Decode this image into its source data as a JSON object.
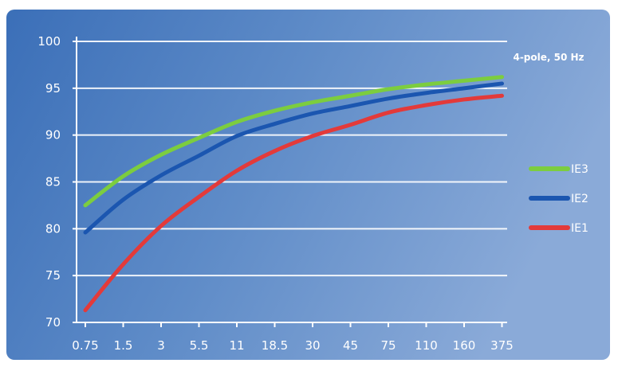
{
  "chart_data": {
    "type": "line",
    "title": "",
    "xlabel": "",
    "ylabel": "",
    "annotation": "4-pole, 50 Hz",
    "categories": [
      "0.75",
      "1.5",
      "3",
      "5.5",
      "11",
      "18.5",
      "30",
      "45",
      "75",
      "110",
      "160",
      "375"
    ],
    "ylim": [
      70,
      100
    ],
    "yticks": [
      "70",
      "75",
      "80",
      "85",
      "90",
      "95",
      "100"
    ],
    "grid": true,
    "legend_position": "right",
    "series": [
      {
        "name": "IE3",
        "color": "#7ccd3f",
        "values": [
          82.5,
          85.6,
          87.9,
          89.7,
          91.4,
          92.6,
          93.5,
          94.2,
          94.9,
          95.4,
          95.8,
          96.2
        ]
      },
      {
        "name": "IE2",
        "color": "#1b56b0",
        "values": [
          79.6,
          83.1,
          85.7,
          87.8,
          89.9,
          91.2,
          92.3,
          93.1,
          93.9,
          94.5,
          95.0,
          95.5
        ]
      },
      {
        "name": "IE1",
        "color": "#e33a3a",
        "values": [
          71.3,
          76.2,
          80.3,
          83.4,
          86.2,
          88.3,
          89.9,
          91.1,
          92.4,
          93.2,
          93.8,
          94.2
        ]
      }
    ]
  }
}
